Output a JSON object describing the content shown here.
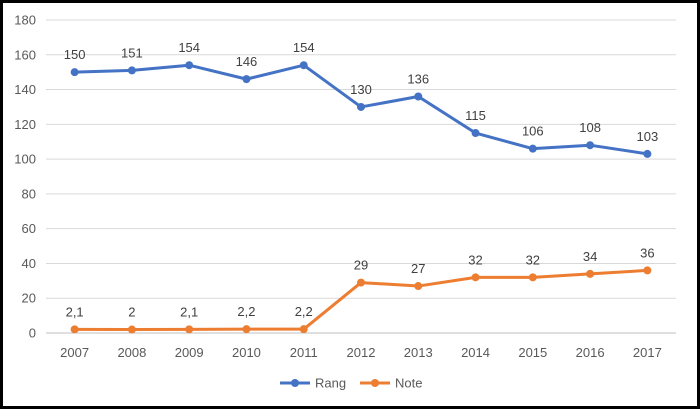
{
  "chart_data": {
    "type": "line",
    "title": "",
    "xlabel": "",
    "ylabel": "",
    "categories": [
      "2007",
      "2008",
      "2009",
      "2010",
      "2011",
      "2012",
      "2013",
      "2014",
      "2015",
      "2016",
      "2017"
    ],
    "ylim": [
      0,
      180
    ],
    "yticks": [
      0,
      20,
      40,
      60,
      80,
      100,
      120,
      140,
      160,
      180
    ],
    "grid": "horizontal",
    "legend": "bottom",
    "series": [
      {
        "name": "Rang",
        "color": "#4472c4",
        "values": [
          150,
          151,
          154,
          146,
          154,
          130,
          136,
          115,
          106,
          108,
          103
        ],
        "labels": [
          "150",
          "151",
          "154",
          "146",
          "154",
          "130",
          "136",
          "115",
          "106",
          "108",
          "103"
        ]
      },
      {
        "name": "Note",
        "color": "#ed7d31",
        "values": [
          2.1,
          2,
          2.1,
          2.2,
          2.2,
          29,
          27,
          32,
          32,
          34,
          36
        ],
        "labels": [
          "2,1",
          "2",
          "2,1",
          "2,2",
          "2,2",
          "29",
          "27",
          "32",
          "32",
          "34",
          "36"
        ]
      }
    ]
  }
}
